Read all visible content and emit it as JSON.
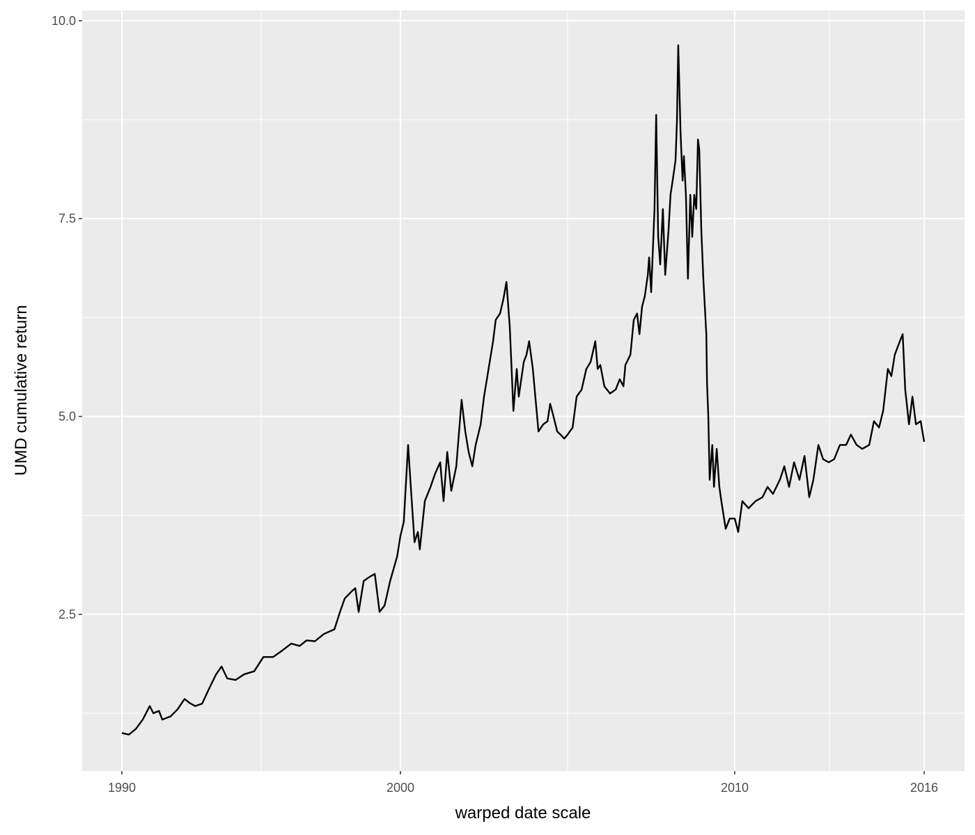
{
  "chart_data": {
    "type": "line",
    "title": "",
    "xlabel": "warped date scale",
    "ylabel": "UMD cumulative return",
    "x_scale": "warped date (piecewise linear between breaks)",
    "x_ticks": [
      "1990",
      "2000",
      "2010",
      "2016"
    ],
    "x_minor_breaks": [
      1995,
      2005,
      2013
    ],
    "y_ticks": [
      "2.5",
      "5.0",
      "7.5",
      "10.0"
    ],
    "y_tick_values": [
      2.5,
      5.0,
      7.5,
      10.0
    ],
    "y_minor_breaks": [
      1.25,
      3.75,
      6.25,
      8.75
    ],
    "xlim": [
      1988.6,
      2017.3
    ],
    "ylim": [
      0.52,
      10.13
    ],
    "grid": true,
    "line_color": "#000000",
    "panel_background": "#ebebeb",
    "x": [
      1990.0,
      1990.25,
      1990.5,
      1990.75,
      1991.0,
      1991.13,
      1991.33,
      1991.45,
      1991.75,
      1992.0,
      1992.25,
      1992.43,
      1992.63,
      1992.88,
      1993.13,
      1993.38,
      1993.58,
      1993.78,
      1994.08,
      1994.38,
      1994.75,
      1995.08,
      1995.43,
      1995.75,
      1996.08,
      1996.38,
      1996.63,
      1996.93,
      1997.25,
      1997.63,
      1997.83,
      1998.0,
      1998.25,
      1998.38,
      1998.5,
      1998.68,
      1998.88,
      1999.08,
      1999.25,
      1999.43,
      1999.63,
      1999.88,
      2000.0,
      2000.1,
      2000.23,
      2000.31,
      2000.42,
      2000.52,
      2000.58,
      2000.73,
      2000.9,
      2001.04,
      2001.19,
      2001.29,
      2001.4,
      2001.52,
      2001.67,
      2001.83,
      2001.94,
      2002.04,
      2002.15,
      2002.25,
      2002.4,
      2002.5,
      2002.67,
      2002.77,
      2002.85,
      2002.98,
      2003.08,
      2003.17,
      2003.27,
      2003.38,
      2003.48,
      2003.54,
      2003.69,
      2003.77,
      2003.85,
      2003.96,
      2004.13,
      2004.27,
      2004.4,
      2004.48,
      2004.56,
      2004.69,
      2004.79,
      2004.9,
      2005.0,
      2005.15,
      2005.27,
      2005.42,
      2005.56,
      2005.69,
      2005.83,
      2005.9,
      2005.98,
      2006.1,
      2006.27,
      2006.44,
      2006.56,
      2006.67,
      2006.73,
      2006.88,
      2006.98,
      2007.08,
      2007.15,
      2007.23,
      2007.31,
      2007.4,
      2007.44,
      2007.5,
      2007.6,
      2007.65,
      2007.71,
      2007.77,
      2007.85,
      2007.92,
      2008.02,
      2008.08,
      2008.17,
      2008.23,
      2008.27,
      2008.31,
      2008.38,
      2008.44,
      2008.48,
      2008.54,
      2008.6,
      2008.67,
      2008.73,
      2008.79,
      2008.85,
      2008.9,
      2008.94,
      2009.0,
      2009.06,
      2009.15,
      2009.17,
      2009.21,
      2009.25,
      2009.33,
      2009.38,
      2009.46,
      2009.54,
      2009.6,
      2009.73,
      2009.85,
      2010.0,
      2010.11,
      2010.24,
      2010.44,
      2010.66,
      2010.88,
      2011.04,
      2011.21,
      2011.43,
      2011.57,
      2011.72,
      2011.88,
      2012.05,
      2012.21,
      2012.36,
      2012.49,
      2012.65,
      2012.8,
      2012.98,
      2013.15,
      2013.33,
      2013.53,
      2013.68,
      2013.86,
      2014.04,
      2014.26,
      2014.41,
      2014.57,
      2014.7,
      2014.85,
      2014.96,
      2015.07,
      2015.23,
      2015.32,
      2015.4,
      2015.52,
      2015.63,
      2015.74,
      2015.89,
      2016.0
    ],
    "y": [
      1.0,
      0.98,
      1.05,
      1.17,
      1.34,
      1.25,
      1.28,
      1.17,
      1.21,
      1.3,
      1.43,
      1.38,
      1.34,
      1.37,
      1.56,
      1.74,
      1.84,
      1.69,
      1.67,
      1.74,
      1.78,
      1.96,
      1.96,
      2.04,
      2.13,
      2.1,
      2.17,
      2.16,
      2.25,
      2.31,
      2.53,
      2.7,
      2.79,
      2.83,
      2.53,
      2.92,
      2.97,
      3.01,
      2.53,
      2.61,
      2.92,
      3.23,
      3.49,
      3.67,
      4.64,
      4.11,
      3.41,
      3.54,
      3.32,
      3.93,
      4.11,
      4.28,
      4.42,
      3.93,
      4.55,
      4.06,
      4.37,
      5.21,
      4.81,
      4.55,
      4.37,
      4.64,
      4.9,
      5.25,
      5.69,
      5.95,
      6.22,
      6.3,
      6.48,
      6.7,
      6.13,
      5.07,
      5.6,
      5.25,
      5.69,
      5.78,
      5.95,
      5.6,
      4.81,
      4.9,
      4.94,
      5.16,
      5.03,
      4.81,
      4.77,
      4.72,
      4.77,
      4.86,
      5.25,
      5.34,
      5.6,
      5.69,
      5.95,
      5.6,
      5.65,
      5.38,
      5.29,
      5.34,
      5.47,
      5.38,
      5.65,
      5.78,
      6.22,
      6.3,
      6.04,
      6.39,
      6.52,
      6.79,
      7.01,
      6.57,
      7.62,
      8.81,
      7.27,
      6.92,
      7.62,
      6.79,
      7.36,
      7.8,
      8.06,
      8.24,
      8.72,
      9.69,
      8.59,
      7.98,
      8.29,
      7.8,
      6.74,
      7.8,
      7.27,
      7.8,
      7.62,
      8.5,
      8.37,
      7.36,
      6.74,
      6.04,
      5.43,
      4.99,
      4.2,
      4.64,
      4.11,
      4.59,
      4.11,
      3.93,
      3.58,
      3.71,
      3.71,
      3.54,
      3.93,
      3.84,
      3.93,
      3.98,
      4.11,
      4.02,
      4.2,
      4.37,
      4.11,
      4.42,
      4.2,
      4.5,
      3.98,
      4.2,
      4.64,
      4.46,
      4.42,
      4.46,
      4.64,
      4.64,
      4.77,
      4.64,
      4.59,
      4.64,
      4.94,
      4.86,
      5.07,
      5.6,
      5.51,
      5.78,
      5.95,
      6.04,
      5.34,
      4.9,
      5.25,
      4.9,
      4.94,
      4.68
    ]
  }
}
